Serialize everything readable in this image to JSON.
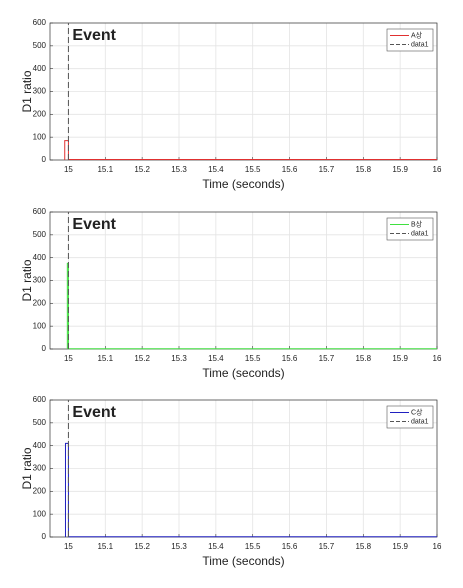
{
  "chart_data": [
    {
      "type": "line",
      "xlabel": "Time (seconds)",
      "ylabel": "D1 ratio",
      "annotations": [
        "Event"
      ],
      "xlim": [
        14.95,
        16
      ],
      "ylim": [
        0,
        600
      ],
      "xticks": [
        15,
        15.1,
        15.2,
        15.3,
        15.4,
        15.5,
        15.6,
        15.7,
        15.8,
        15.9,
        16
      ],
      "yticks": [
        0,
        100,
        200,
        300,
        400,
        500,
        600
      ],
      "grid": true,
      "legend": "upper right",
      "series": [
        {
          "name": "A상",
          "color": "#e03030",
          "linestyle": "-",
          "x": [
            14.99,
            14.99,
            15.0,
            15.0,
            16
          ],
          "values": [
            0,
            85,
            85,
            2,
            2
          ]
        },
        {
          "name": "data1",
          "color": "#555555",
          "linestyle": "--",
          "x": [
            15,
            15
          ],
          "values": [
            0,
            600
          ]
        }
      ]
    },
    {
      "type": "line",
      "xlabel": "Time (seconds)",
      "ylabel": "D1 ratio",
      "annotations": [
        "Event"
      ],
      "xlim": [
        14.95,
        16
      ],
      "ylim": [
        0,
        600
      ],
      "xticks": [
        15,
        15.1,
        15.2,
        15.3,
        15.4,
        15.5,
        15.6,
        15.7,
        15.8,
        15.9,
        16
      ],
      "yticks": [
        0,
        100,
        200,
        300,
        400,
        500,
        600
      ],
      "grid": true,
      "legend": "upper right",
      "series": [
        {
          "name": "B상",
          "color": "#40e040",
          "linestyle": "-",
          "x": [
            14.997,
            14.997,
            15.0,
            15.0,
            16
          ],
          "values": [
            0,
            375,
            375,
            1,
            1
          ]
        },
        {
          "name": "data1",
          "color": "#555555",
          "linestyle": "--",
          "x": [
            15,
            15
          ],
          "values": [
            0,
            600
          ]
        }
      ]
    },
    {
      "type": "line",
      "xlabel": "Time (seconds)",
      "ylabel": "D1 ratio",
      "annotations": [
        "Event"
      ],
      "xlim": [
        14.95,
        16
      ],
      "ylim": [
        0,
        600
      ],
      "xticks": [
        15,
        15.1,
        15.2,
        15.3,
        15.4,
        15.5,
        15.6,
        15.7,
        15.8,
        15.9,
        16
      ],
      "yticks": [
        0,
        100,
        200,
        300,
        400,
        500,
        600
      ],
      "grid": true,
      "legend": "upper right",
      "series": [
        {
          "name": "C상",
          "color": "#2020c0",
          "linestyle": "-",
          "x": [
            14.992,
            14.992,
            15.0,
            15.0,
            16
          ],
          "values": [
            0,
            410,
            410,
            1,
            1
          ]
        },
        {
          "name": "data1",
          "color": "#555555",
          "linestyle": "--",
          "x": [
            15,
            15
          ],
          "values": [
            0,
            600
          ]
        }
      ]
    }
  ]
}
